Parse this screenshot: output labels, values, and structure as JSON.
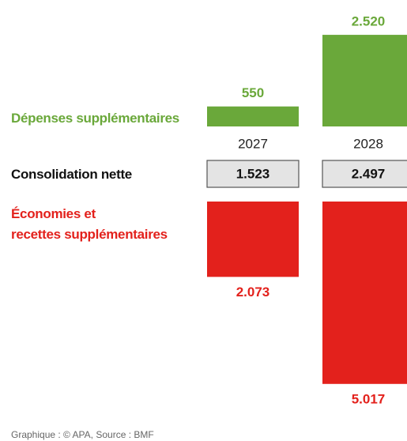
{
  "chart_data": {
    "type": "diverging_bar",
    "categories": [
      "2027",
      "2028"
    ],
    "series": [
      {
        "name": "Dépenses supplémentaires",
        "color": "#6aa83a",
        "values": [
          550,
          2520
        ],
        "value_labels": [
          "550",
          "2.520"
        ],
        "direction": "up"
      },
      {
        "name": "Consolidation nette",
        "color": "#e4e4e4",
        "values": [
          1523,
          2497
        ],
        "value_labels": [
          "1.523",
          "2.497"
        ],
        "direction": "box"
      },
      {
        "name": "Économies et\nrecettes supplémentaires",
        "color": "#e3211c",
        "values": [
          2073,
          5017
        ],
        "value_labels": [
          "2.073",
          "5.017"
        ],
        "direction": "down"
      }
    ],
    "source": "Graphique : © APA, Source : BMF"
  }
}
